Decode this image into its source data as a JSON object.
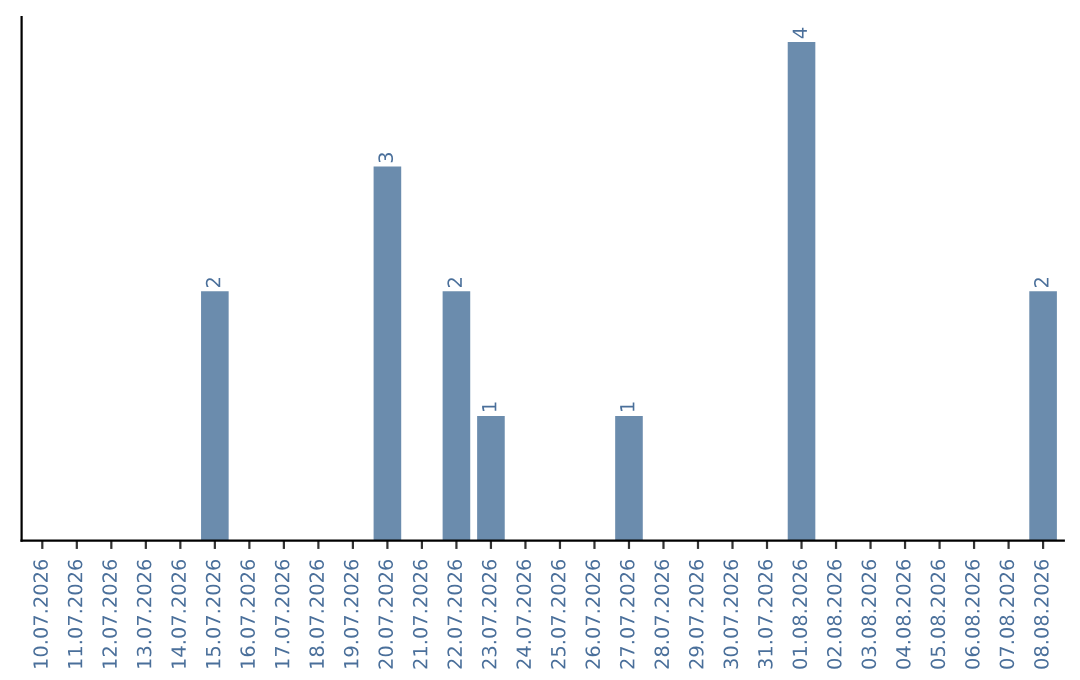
{
  "chart_data": {
    "type": "bar",
    "categories": [
      "10.07.2026",
      "11.07.2026",
      "12.07.2026",
      "13.07.2026",
      "14.07.2026",
      "15.07.2026",
      "16.07.2026",
      "17.07.2026",
      "18.07.2026",
      "19.07.2026",
      "20.07.2026",
      "21.07.2026",
      "22.07.2026",
      "23.07.2026",
      "24.07.2026",
      "25.07.2026",
      "26.07.2026",
      "27.07.2026",
      "28.07.2026",
      "29.07.2026",
      "30.07.2026",
      "31.07.2026",
      "01.08.2026",
      "02.08.2026",
      "03.08.2026",
      "04.08.2026",
      "05.08.2026",
      "06.08.2026",
      "07.08.2026",
      "08.08.2026"
    ],
    "values": [
      0,
      0,
      0,
      0,
      0,
      2,
      0,
      0,
      0,
      0,
      3,
      0,
      2,
      1,
      0,
      0,
      0,
      1,
      0,
      0,
      0,
      0,
      4,
      0,
      0,
      0,
      0,
      0,
      0,
      2
    ],
    "value_labels": [
      null,
      null,
      null,
      null,
      null,
      "2",
      null,
      null,
      null,
      null,
      "3",
      null,
      "2",
      "1",
      null,
      null,
      null,
      "1",
      null,
      null,
      null,
      null,
      "4",
      null,
      null,
      null,
      null,
      null,
      null,
      "2"
    ],
    "color": "#6b8cad",
    "tick_labels": "x",
    "grid": false
  }
}
